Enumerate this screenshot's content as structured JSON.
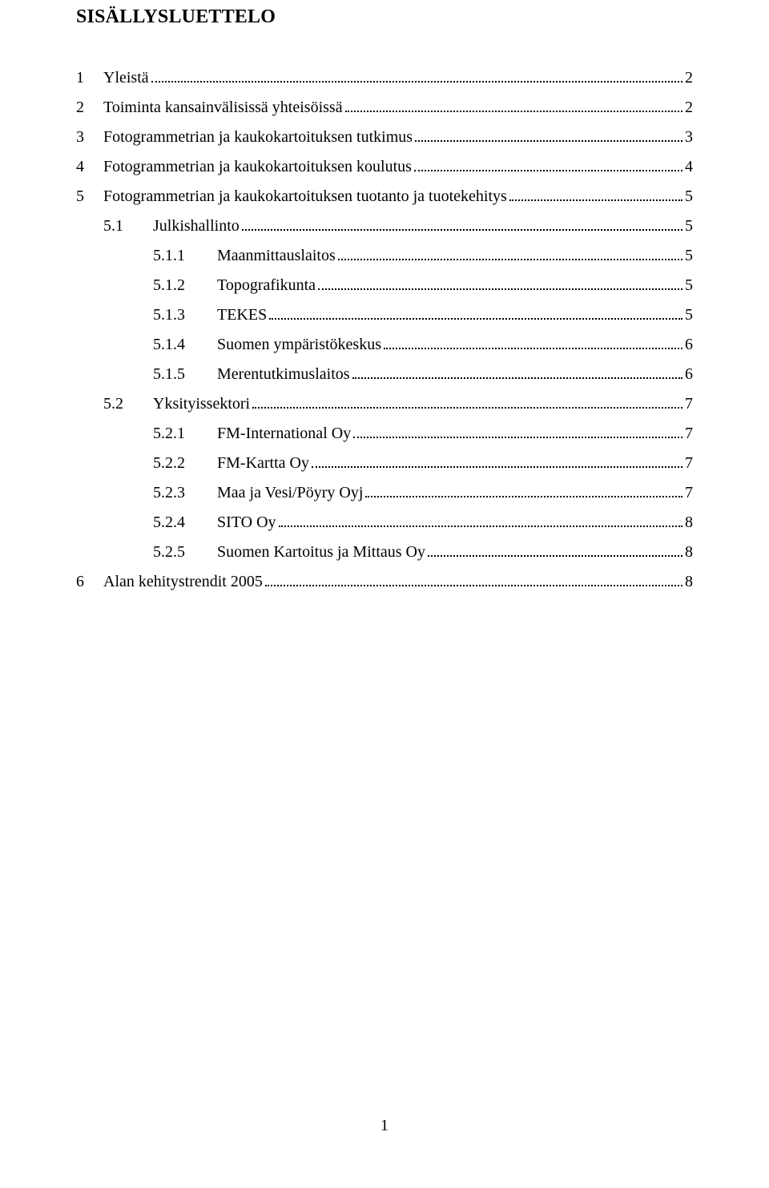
{
  "heading": "SISÄLLYSLUETTELO",
  "page_number": "1",
  "toc": [
    {
      "level": 1,
      "num": "1",
      "title": "Yleistä",
      "page": "2"
    },
    {
      "level": 1,
      "num": "2",
      "title": "Toiminta kansainvälisissä yhteisöissä",
      "page": "2"
    },
    {
      "level": 1,
      "num": "3",
      "title": "Fotogrammetrian ja kaukokartoituksen tutkimus",
      "page": "3"
    },
    {
      "level": 1,
      "num": "4",
      "title": "Fotogrammetrian ja kaukokartoituksen koulutus",
      "page": "4"
    },
    {
      "level": 1,
      "num": "5",
      "title": "Fotogrammetrian ja kaukokartoituksen tuotanto ja tuotekehitys",
      "page": "5"
    },
    {
      "level": 2,
      "num": "5.1",
      "title": "Julkishallinto",
      "page": "5"
    },
    {
      "level": 3,
      "num": "5.1.1",
      "title": "Maanmittauslaitos",
      "page": "5"
    },
    {
      "level": 3,
      "num": "5.1.2",
      "title": "Topografikunta",
      "page": "5"
    },
    {
      "level": 3,
      "num": "5.1.3",
      "title": "TEKES",
      "page": "5"
    },
    {
      "level": 3,
      "num": "5.1.4",
      "title": "Suomen ympäristökeskus",
      "page": "6"
    },
    {
      "level": 3,
      "num": "5.1.5",
      "title": "Merentutkimuslaitos",
      "page": "6"
    },
    {
      "level": 2,
      "num": "5.2",
      "title": "Yksityissektori",
      "page": "7"
    },
    {
      "level": 3,
      "num": "5.2.1",
      "title": "FM-International Oy",
      "page": "7"
    },
    {
      "level": 3,
      "num": "5.2.2",
      "title": "FM-Kartta Oy",
      "page": "7"
    },
    {
      "level": 3,
      "num": "5.2.3",
      "title": "Maa ja Vesi/Pöyry Oyj",
      "page": "7"
    },
    {
      "level": 3,
      "num": "5.2.4",
      "title": "SITO Oy",
      "page": "8"
    },
    {
      "level": 3,
      "num": "5.2.5",
      "title": "Suomen Kartoitus ja Mittaus Oy",
      "page": "8"
    },
    {
      "level": 1,
      "num": "6",
      "title": "Alan kehitystrendit 2005",
      "page": "8"
    }
  ]
}
